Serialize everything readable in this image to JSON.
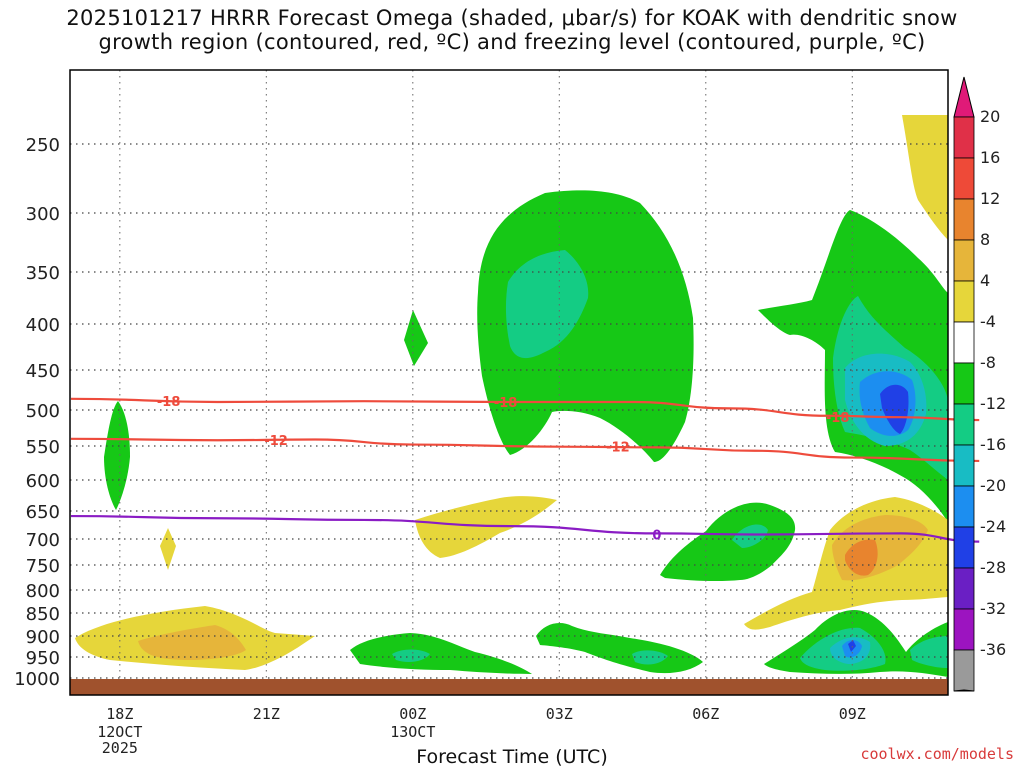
{
  "title_line1": "2025101217 HRRR Forecast Omega (shaded, μbar/s) for KOAK with dendritic snow",
  "title_line2": "growth region (contoured, red, ºC) and freezing level (contoured, purple, ºC)",
  "credit": "coolwx.com/models",
  "colors": {
    "dgz_red": "#ee4b3c",
    "freezing_purple": "#8a1cc4",
    "ground": "#a0522d"
  },
  "chart_data": {
    "type": "heatmap",
    "xlabel": "Forecast Time (UTC)",
    "ylabel": "",
    "y_axis": "pressure (hPa), inverted",
    "ylim": [
      1000,
      200
    ],
    "grid": true,
    "x_ticks": [
      {
        "label": "18Z",
        "sub": [
          "12OCT",
          "2025"
        ],
        "hours": 1
      },
      {
        "label": "21Z",
        "sub": [],
        "hours": 4
      },
      {
        "label": "00Z",
        "sub": [
          "13OCT"
        ],
        "hours": 7
      },
      {
        "label": "03Z",
        "sub": [],
        "hours": 10
      },
      {
        "label": "06Z",
        "sub": [],
        "hours": 13
      },
      {
        "label": "09Z",
        "sub": [],
        "hours": 16
      }
    ],
    "xlim_hours": [
      0,
      18.6
    ],
    "y_ticks": [
      250,
      300,
      350,
      400,
      450,
      500,
      550,
      600,
      650,
      700,
      750,
      800,
      850,
      900,
      950,
      1000
    ],
    "colorbar": {
      "labels": [
        20,
        16,
        12,
        8,
        4,
        -4,
        -8,
        -12,
        -16,
        -20,
        -24,
        -28,
        -32,
        -36
      ],
      "colors": [
        "#e03048",
        "#ee4a38",
        "#e8842e",
        "#e6b53a",
        "#e6d63a",
        "#ffffff",
        "#16c816",
        "#14cc84",
        "#18bcc4",
        "#1c8ef0",
        "#2040e6",
        "#6a1fc4",
        "#9c14c0",
        "#9a9a9a"
      ],
      "top_arrow": "#e01a78",
      "bottom_arrow": "#000000"
    },
    "omega_regions": [
      {
        "name": "green",
        "color": "#16c816",
        "level": "-4 to -8"
      },
      {
        "name": "teal",
        "color": "#14cc84",
        "level": "-8 to -12"
      },
      {
        "name": "cyan",
        "color": "#18bcc4",
        "level": "-12 to -16"
      },
      {
        "name": "lightblue",
        "color": "#1c8ef0",
        "level": "-16 to -20"
      },
      {
        "name": "blue",
        "color": "#2040e6",
        "level": "-20 to -24"
      },
      {
        "name": "yellow",
        "color": "#e6d63a",
        "level": "4 to 8"
      },
      {
        "name": "gold",
        "color": "#e6b53a",
        "level": "8 to 12"
      },
      {
        "name": "orange",
        "color": "#e8842e",
        "level": "12 to 16"
      }
    ],
    "contours": [
      {
        "label": "-18",
        "color": "#ee4b3c",
        "points": [
          [
            0,
            486
          ],
          [
            3,
            490
          ],
          [
            6,
            489
          ],
          [
            9,
            490
          ],
          [
            11.5,
            490
          ],
          [
            13.5,
            498
          ],
          [
            15.5,
            508
          ],
          [
            17,
            510
          ],
          [
            18.6,
            514
          ]
        ],
        "label_at": [
          [
            2.0,
            489
          ],
          [
            8.9,
            490
          ],
          [
            15.7,
            510
          ]
        ]
      },
      {
        "label": "-12",
        "color": "#ee4b3c",
        "points": [
          [
            0,
            540
          ],
          [
            3,
            542
          ],
          [
            5,
            541
          ],
          [
            7,
            548
          ],
          [
            10,
            551
          ],
          [
            12,
            552
          ],
          [
            14,
            557
          ],
          [
            16,
            567
          ],
          [
            18.6,
            572
          ]
        ],
        "label_at": [
          [
            4.2,
            542
          ],
          [
            11.2,
            551
          ]
        ]
      },
      {
        "label": "0",
        "color": "#8a1cc4",
        "points": [
          [
            0,
            659
          ],
          [
            3,
            663
          ],
          [
            6,
            666
          ],
          [
            9,
            677
          ],
          [
            12,
            690
          ],
          [
            14,
            692
          ],
          [
            17,
            690
          ],
          [
            18.6,
            705
          ]
        ],
        "label_at": [
          [
            12.0,
            692
          ]
        ]
      }
    ]
  }
}
